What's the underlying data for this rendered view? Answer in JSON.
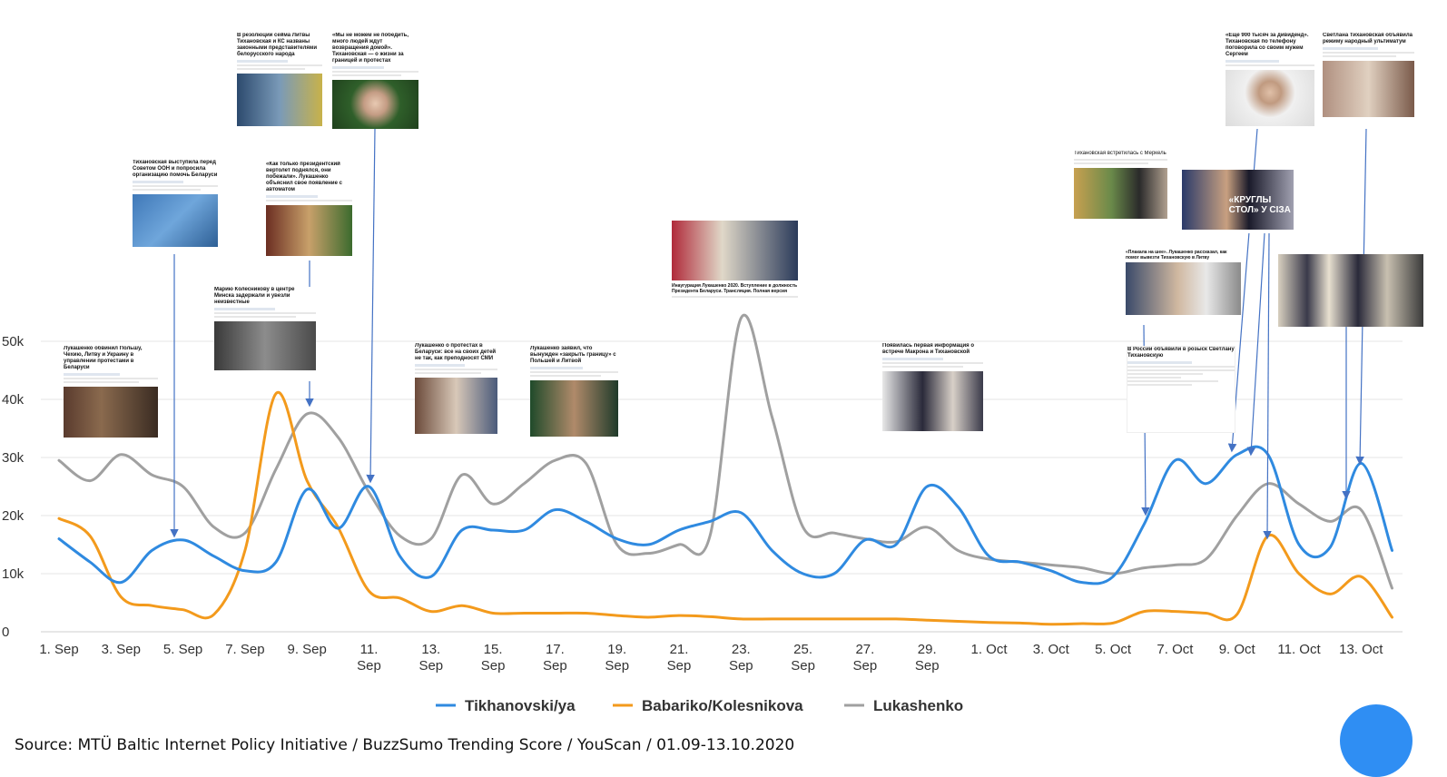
{
  "chart_data": {
    "type": "line",
    "title": "",
    "xlabel": "",
    "ylabel": "",
    "ylim": [
      0,
      55000
    ],
    "y_ticks": [
      "0",
      "10k",
      "20k",
      "30k",
      "40k",
      "50k"
    ],
    "y_tick_values": [
      0,
      10000,
      20000,
      30000,
      40000,
      50000
    ],
    "x_ticks": [
      "1. Sep",
      "3. Sep",
      "5. Sep",
      "7. Sep",
      "9. Sep",
      "11. Sep",
      "13. Sep",
      "15. Sep",
      "17. Sep",
      "19. Sep",
      "21. Sep",
      "23. Sep",
      "25. Sep",
      "27. Sep",
      "29. Sep",
      "1. Oct",
      "3. Oct",
      "5. Oct",
      "7. Oct",
      "9. Oct",
      "11. Oct",
      "13. Oct"
    ],
    "x_tick_lines": [
      [
        "1. Sep"
      ],
      [
        "3. Sep"
      ],
      [
        "5. Sep"
      ],
      [
        "7. Sep"
      ],
      [
        "9. Sep"
      ],
      [
        "11.",
        "Sep"
      ],
      [
        "13.",
        "Sep"
      ],
      [
        "15.",
        "Sep"
      ],
      [
        "17.",
        "Sep"
      ],
      [
        "19.",
        "Sep"
      ],
      [
        "21.",
        "Sep"
      ],
      [
        "23.",
        "Sep"
      ],
      [
        "25.",
        "Sep"
      ],
      [
        "27.",
        "Sep"
      ],
      [
        "29.",
        "Sep"
      ],
      [
        "1. Oct"
      ],
      [
        "3. Oct"
      ],
      [
        "5. Oct"
      ],
      [
        "7. Oct"
      ],
      [
        "9. Oct"
      ],
      [
        "11. Oct"
      ],
      [
        "13. Oct"
      ]
    ],
    "x": [
      "1. Sep",
      "2. Sep",
      "3. Sep",
      "4. Sep",
      "5. Sep",
      "6. Sep",
      "7. Sep",
      "8. Sep",
      "9. Sep",
      "10. Sep",
      "11. Sep",
      "12. Sep",
      "13. Sep",
      "14. Sep",
      "15. Sep",
      "16. Sep",
      "17. Sep",
      "18. Sep",
      "19. Sep",
      "20. Sep",
      "21. Sep",
      "22. Sep",
      "23. Sep",
      "24. Sep",
      "25. Sep",
      "26. Sep",
      "27. Sep",
      "28. Sep",
      "29. Sep",
      "30. Sep",
      "1. Oct",
      "2. Oct",
      "3. Oct",
      "4. Oct",
      "5. Oct",
      "6. Oct",
      "7. Oct",
      "8. Oct",
      "9. Oct",
      "10. Oct",
      "11. Oct",
      "12. Oct",
      "13. Oct",
      "14. Oct"
    ],
    "series": [
      {
        "name": "Tikhanovski/ya",
        "color": "#2f8ae0",
        "values": [
          16000,
          12000,
          8500,
          14000,
          15800,
          13000,
          10500,
          12000,
          24500,
          17800,
          25000,
          13000,
          9500,
          17500,
          17500,
          17500,
          21000,
          19000,
          16000,
          15000,
          17500,
          19000,
          20500,
          14000,
          10000,
          10000,
          15800,
          15000,
          25000,
          21500,
          13000,
          12000,
          10500,
          8500,
          9500,
          18500,
          29500,
          25500,
          30500,
          30500,
          15000,
          14500,
          29000,
          14000
        ]
      },
      {
        "name": "Babariko/Kolesnikova",
        "color": "#f39a1c",
        "values": [
          19500,
          16500,
          6000,
          4500,
          3800,
          3000,
          14000,
          41000,
          26000,
          18000,
          7000,
          5800,
          3500,
          4500,
          3200,
          3200,
          3200,
          3200,
          2800,
          2500,
          2800,
          2600,
          2200,
          2200,
          2200,
          2200,
          2200,
          2200,
          2000,
          1800,
          1600,
          1500,
          1300,
          1400,
          1500,
          3500,
          3500,
          3200,
          3000,
          16500,
          10000,
          6500,
          9500,
          2500
        ]
      },
      {
        "name": "Lukashenko",
        "color": "#a0a0a0",
        "values": [
          29500,
          26000,
          30500,
          27000,
          25000,
          18000,
          17000,
          28000,
          37500,
          33500,
          24000,
          16500,
          16000,
          27000,
          22000,
          25500,
          29500,
          29000,
          15000,
          13500,
          15000,
          16500,
          54000,
          37000,
          18000,
          17000,
          16000,
          15500,
          18000,
          14000,
          12500,
          12000,
          11500,
          11000,
          10000,
          11000,
          11500,
          12500,
          20000,
          25500,
          22000,
          19000,
          21000,
          7500
        ]
      }
    ],
    "legend_position": "bottom-center",
    "grid": "horizontal"
  },
  "cards": [
    {
      "headline": "Лукашенко обвинил Польшу, Чехию, Литву и Украину в управлении протестами в Беларуси"
    },
    {
      "headline": "Тихановская выступила перед Советом ООН и попросила организацию помочь Беларуси"
    },
    {
      "headline": "В резолюции сейма Литвы Тихановская и КС названы законными представителями белорусского народа"
    },
    {
      "headline": "«Мы не можем не победить, много людей ждут возвращения домой». Тихановская — о жизни за границей и протестах"
    },
    {
      "headline": "«Как только президентский вертолет поднялся, они побежали». Лукашенко объяснил свое появление с автоматом"
    },
    {
      "headline": "Марию Колесникову в центре Минска задержали и увезли неизвестные"
    },
    {
      "headline": "Лукашенко о протестах в Беларуси: все на своих детей не так, как преподносят СМИ"
    },
    {
      "headline": "Лукашенко заявил, что вынужден «закрыть границу» с Польшей и Литвой"
    },
    {
      "headline": "Инаугурация Лукашенко 2020. Вступление в должность Президента Беларуси. Трансляция. Полная версия"
    },
    {
      "headline": "Появилась первая информация о встрече Макрона и Тихановской"
    },
    {
      "headline": "Тихановская встретилась с Меркель"
    },
    {
      "headline": "«Еще 900 тысяч за дивиденд». Тихановская по телефону поговорила со своим мужем Сергеем"
    },
    {
      "headline": "Светлана Тихановская объявила режиму народный ультиматум"
    },
    {
      "headline": "",
      "photo_label": "«КРУГЛЫ СТОЛ» У СІЗА"
    },
    {
      "headline": "«Плакала на шее». Лукашенко рассказал, как помог вывезти Тихановскую в Литву"
    },
    {
      "headline": "В России объявили в розыск Светлану Тихановскую"
    },
    {
      "headline": ""
    }
  ],
  "source": "Source: MTÜ Baltic Internet Policy Initiative / BuzzSumo Trending Score / YouScan  / 01.09-13.10.2020",
  "colors": {
    "arrow": "#4472c4",
    "grid": "#e6e6e6"
  }
}
